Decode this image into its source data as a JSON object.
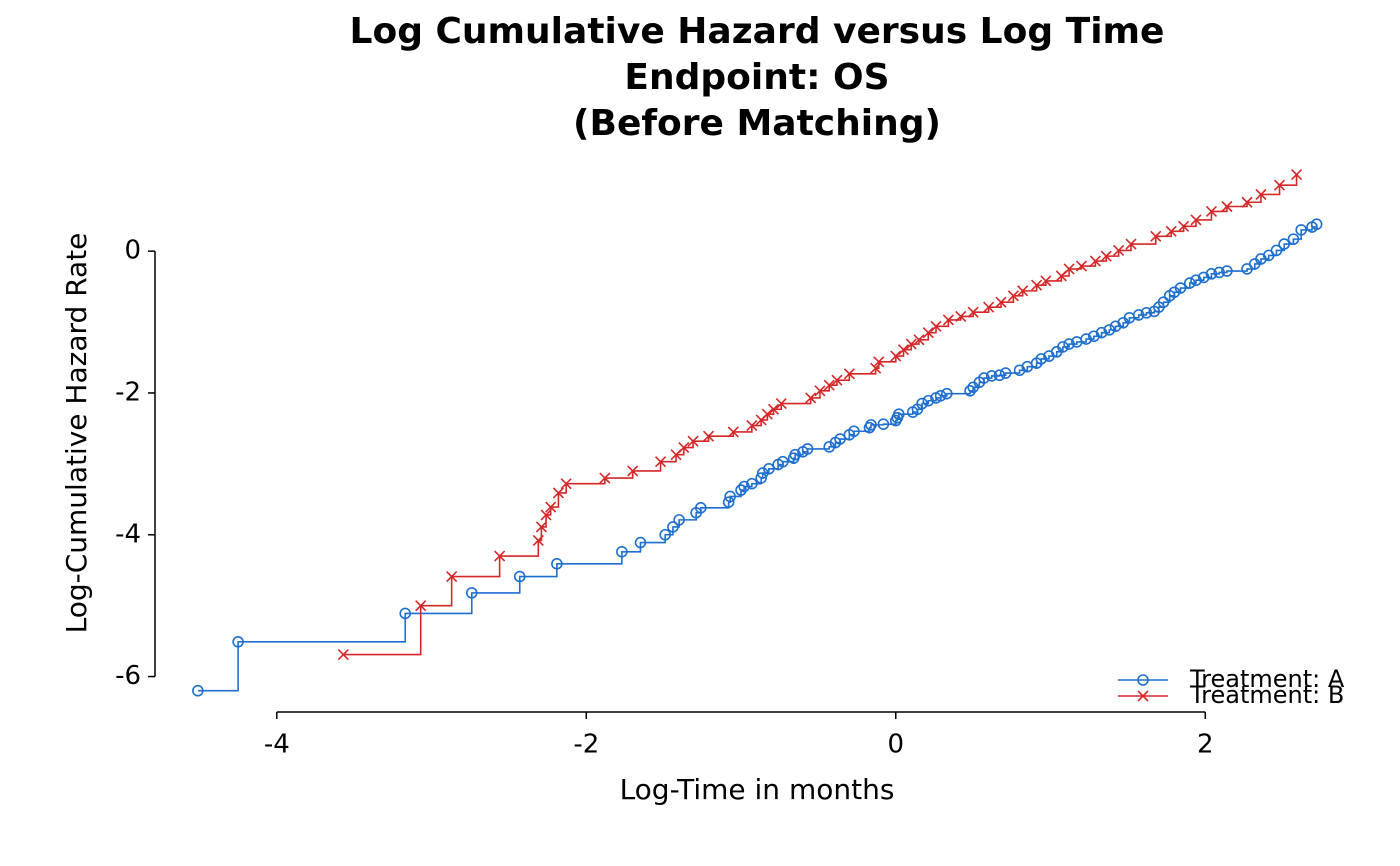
{
  "chart_data": {
    "type": "step",
    "title": [
      "Log Cumulative Hazard versus Log Time",
      "Endpoint: OS",
      "(Before Matching)"
    ],
    "x_label": "Log-Time in months",
    "y_label": "Log-Cumulative Hazard Rate",
    "xlim": [
      -4.8,
      3.0
    ],
    "ylim": [
      -6.5,
      1.3
    ],
    "xticks": [
      -4,
      -2,
      0,
      2
    ],
    "yticks": [
      0,
      -2,
      -4,
      -6
    ],
    "legend": "lower right",
    "series": [
      {
        "name": "Treatment: A",
        "color": "#1f6fcf",
        "marker": "circle",
        "x": [
          -4.51,
          -4.25,
          -3.17,
          -2.74,
          -2.43,
          -2.19,
          -1.77,
          -1.65,
          -1.49,
          -1.44,
          -1.4,
          -1.29,
          -1.26,
          -1.08,
          -1.07,
          -1.0,
          -0.98,
          -0.93,
          -0.87,
          -0.86,
          -0.82,
          -0.76,
          -0.73,
          -0.66,
          -0.65,
          -0.6,
          -0.57,
          -0.43,
          -0.39,
          -0.36,
          -0.3,
          -0.27,
          -0.17,
          -0.16,
          -0.08,
          0,
          0.01,
          0.02,
          0.11,
          0.14,
          0.17,
          0.21,
          0.26,
          0.29,
          0.33,
          0.48,
          0.5,
          0.54,
          0.57,
          0.62,
          0.67,
          0.71,
          0.8,
          0.85,
          0.91,
          0.94,
          0.99,
          1.04,
          1.08,
          1.12,
          1.17,
          1.23,
          1.28,
          1.33,
          1.38,
          1.42,
          1.47,
          1.51,
          1.57,
          1.62,
          1.67,
          1.7,
          1.73,
          1.77,
          1.8,
          1.84,
          1.9,
          1.94,
          1.99,
          2.04,
          2.09,
          2.14,
          2.27,
          2.32,
          2.36,
          2.41,
          2.46,
          2.51,
          2.57,
          2.62,
          2.69,
          2.72
        ],
        "values": [
          -6.2,
          -5.51,
          -5.11,
          -4.82,
          -4.59,
          -4.41,
          -4.24,
          -4.11,
          -4.0,
          -3.89,
          -3.79,
          -3.69,
          -3.62,
          -3.54,
          -3.46,
          -3.37,
          -3.32,
          -3.28,
          -3.2,
          -3.13,
          -3.07,
          -3.01,
          -2.97,
          -2.92,
          -2.87,
          -2.83,
          -2.79,
          -2.76,
          -2.7,
          -2.65,
          -2.59,
          -2.54,
          -2.49,
          -2.45,
          -2.44,
          -2.39,
          -2.35,
          -2.3,
          -2.27,
          -2.23,
          -2.15,
          -2.11,
          -2.07,
          -2.04,
          -2.01,
          -1.97,
          -1.92,
          -1.85,
          -1.79,
          -1.76,
          -1.75,
          -1.72,
          -1.68,
          -1.63,
          -1.58,
          -1.52,
          -1.48,
          -1.42,
          -1.35,
          -1.31,
          -1.28,
          -1.24,
          -1.2,
          -1.15,
          -1.11,
          -1.06,
          -1.01,
          -0.94,
          -0.9,
          -0.87,
          -0.85,
          -0.79,
          -0.72,
          -0.63,
          -0.58,
          -0.52,
          -0.45,
          -0.41,
          -0.37,
          -0.32,
          -0.3,
          -0.28,
          -0.25,
          -0.18,
          -0.11,
          -0.06,
          0.01,
          0.1,
          0.17,
          0.3,
          0.34,
          0.38
        ]
      },
      {
        "name": "Treatment: B",
        "color": "#d62728",
        "marker": "x",
        "x": [
          -3.57,
          -3.07,
          -2.87,
          -2.56,
          -2.31,
          -2.29,
          -2.26,
          -2.23,
          -2.18,
          -2.13,
          -1.88,
          -1.7,
          -1.52,
          -1.42,
          -1.37,
          -1.31,
          -1.21,
          -1.05,
          -0.93,
          -0.87,
          -0.83,
          -0.79,
          -0.74,
          -0.55,
          -0.49,
          -0.43,
          -0.38,
          -0.3,
          -0.13,
          -0.11,
          0,
          0.05,
          0.1,
          0.15,
          0.21,
          0.26,
          0.34,
          0.42,
          0.5,
          0.6,
          0.68,
          0.76,
          0.82,
          0.91,
          0.97,
          1.07,
          1.12,
          1.2,
          1.29,
          1.36,
          1.44,
          1.52,
          1.68,
          1.78,
          1.86,
          1.94,
          2.04,
          2.14,
          2.27,
          2.36,
          2.48,
          2.59
        ],
        "values": [
          -5.69,
          -5.0,
          -4.59,
          -4.3,
          -4.08,
          -3.89,
          -3.72,
          -3.61,
          -3.41,
          -3.28,
          -3.2,
          -3.1,
          -2.97,
          -2.87,
          -2.77,
          -2.68,
          -2.61,
          -2.55,
          -2.46,
          -2.38,
          -2.3,
          -2.23,
          -2.15,
          -2.07,
          -1.97,
          -1.89,
          -1.82,
          -1.73,
          -1.65,
          -1.56,
          -1.48,
          -1.39,
          -1.31,
          -1.25,
          -1.15,
          -1.06,
          -0.97,
          -0.92,
          -0.86,
          -0.79,
          -0.72,
          -0.63,
          -0.56,
          -0.48,
          -0.42,
          -0.35,
          -0.25,
          -0.21,
          -0.14,
          -0.07,
          0.01,
          0.1,
          0.21,
          0.28,
          0.35,
          0.44,
          0.56,
          0.63,
          0.69,
          0.8,
          0.93,
          1.08
        ]
      }
    ]
  }
}
